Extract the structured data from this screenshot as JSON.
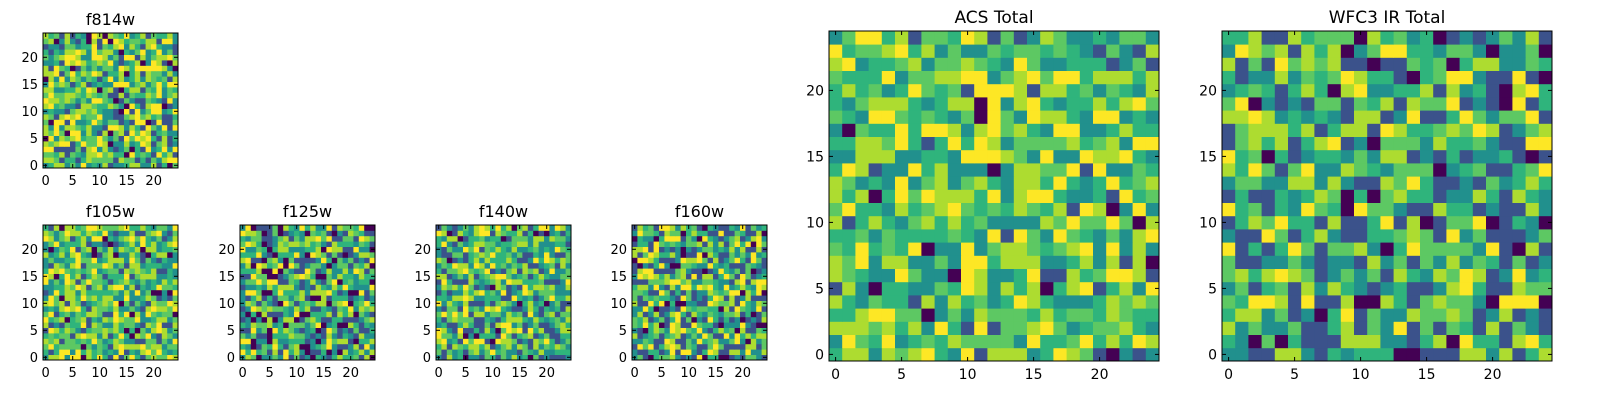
{
  "palette": [
    "#440154",
    "#3b528b",
    "#21908d",
    "#2fb47c",
    "#5dc863",
    "#addc30",
    "#fde725"
  ],
  "chart_data": [
    {
      "id": "f814w",
      "type": "heatmap",
      "title": "f814w",
      "grid": 25,
      "xlim": [
        0,
        24
      ],
      "ylim": [
        0,
        24
      ],
      "xticks": [
        0,
        5,
        10,
        15,
        20
      ],
      "yticks": [
        0,
        5,
        10,
        15,
        20
      ],
      "seed": 17,
      "bias": 0.58,
      "spread": 0.42,
      "dark_fraction": 0.05
    },
    {
      "id": "f105w",
      "type": "heatmap",
      "title": "f105w",
      "grid": 25,
      "xlim": [
        0,
        24
      ],
      "ylim": [
        0,
        24
      ],
      "xticks": [
        0,
        5,
        10,
        15,
        20
      ],
      "yticks": [
        0,
        5,
        10,
        15,
        20
      ],
      "seed": 29,
      "bias": 0.6,
      "spread": 0.38,
      "dark_fraction": 0.04
    },
    {
      "id": "f125w",
      "type": "heatmap",
      "title": "f125w",
      "grid": 25,
      "xlim": [
        0,
        24
      ],
      "ylim": [
        0,
        24
      ],
      "xticks": [
        0,
        5,
        10,
        15,
        20
      ],
      "yticks": [
        0,
        5,
        10,
        15,
        20
      ],
      "seed": 41,
      "bias": 0.5,
      "spread": 0.42,
      "dark_fraction": 0.06
    },
    {
      "id": "f140w",
      "type": "heatmap",
      "title": "f140w",
      "grid": 25,
      "xlim": [
        0,
        24
      ],
      "ylim": [
        0,
        24
      ],
      "xticks": [
        0,
        5,
        10,
        15,
        20
      ],
      "yticks": [
        0,
        5,
        10,
        15,
        20
      ],
      "seed": 53,
      "bias": 0.55,
      "spread": 0.4,
      "dark_fraction": 0.04
    },
    {
      "id": "f160w",
      "type": "heatmap",
      "title": "f160w",
      "grid": 25,
      "xlim": [
        0,
        24
      ],
      "ylim": [
        0,
        24
      ],
      "xticks": [
        0,
        5,
        10,
        15,
        20
      ],
      "yticks": [
        0,
        5,
        10,
        15,
        20
      ],
      "seed": 67,
      "bias": 0.55,
      "spread": 0.42,
      "dark_fraction": 0.05
    },
    {
      "id": "acs-total",
      "type": "heatmap",
      "title": "ACS Total",
      "grid": 25,
      "xlim": [
        0,
        24
      ],
      "ylim": [
        0,
        24
      ],
      "xticks": [
        0,
        5,
        10,
        15,
        20
      ],
      "yticks": [
        0,
        5,
        10,
        15,
        20
      ],
      "seed": 83,
      "bias": 0.62,
      "spread": 0.36,
      "dark_fraction": 0.03
    },
    {
      "id": "wfc3-ir-total",
      "type": "heatmap",
      "title": "WFC3 IR Total",
      "grid": 25,
      "xlim": [
        0,
        24
      ],
      "ylim": [
        0,
        24
      ],
      "xticks": [
        0,
        5,
        10,
        15,
        20
      ],
      "yticks": [
        0,
        5,
        10,
        15,
        20
      ],
      "seed": 97,
      "bias": 0.52,
      "spread": 0.4,
      "dark_fraction": 0.05
    }
  ]
}
